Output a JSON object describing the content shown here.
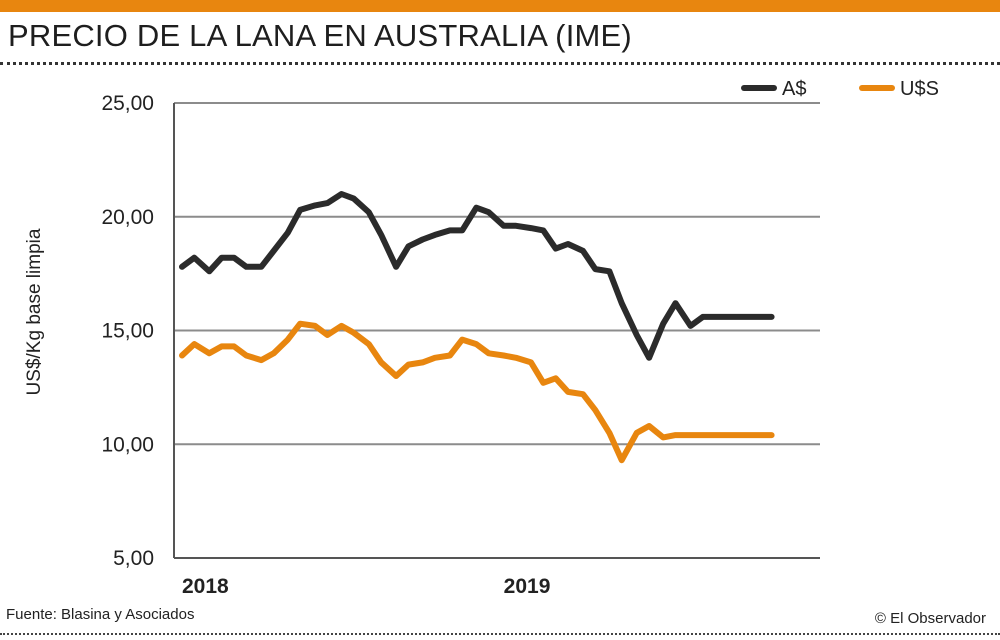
{
  "header": {
    "title": "PRECIO DE LA LANA EN AUSTRALIA (IME)"
  },
  "footer": {
    "source": "Fuente: Blasina y Asociados",
    "credit": "© El Observador"
  },
  "colors": {
    "accent": "#e8860f",
    "series_aud": "#2b2b2b",
    "series_usd": "#e8860f",
    "grid": "#8c8c8c"
  },
  "chart_data": {
    "type": "line",
    "title": "PRECIO DE LA LANA EN AUSTRALIA (IME)",
    "ylabel": "US$/Kg base limpia",
    "xlabel": "",
    "ylim": [
      5,
      25
    ],
    "xlim": [
      "2018-01-01",
      "2019-12-01"
    ],
    "yticks": [
      5,
      10,
      15,
      20,
      25
    ],
    "ytick_labels": [
      "5,00",
      "10,00",
      "15,00",
      "20,00",
      "25,00"
    ],
    "xticks": [
      "2018-01-01",
      "2019-01-01"
    ],
    "xtick_labels": [
      "2018",
      "2019"
    ],
    "grid": "horizontal",
    "legend_position": "top-right",
    "series": [
      {
        "name": "A$",
        "color": "#2b2b2b",
        "x": [
          "2018-01-01",
          "2018-01-15",
          "2018-02-01",
          "2018-02-15",
          "2018-03-01",
          "2018-03-15",
          "2018-04-01",
          "2018-04-15",
          "2018-05-01",
          "2018-05-15",
          "2018-06-01",
          "2018-06-15",
          "2018-07-01",
          "2018-07-15",
          "2018-08-01",
          "2018-08-15",
          "2018-09-01",
          "2018-09-15",
          "2018-10-01",
          "2018-10-15",
          "2018-11-01",
          "2018-11-15",
          "2018-12-01",
          "2018-12-15",
          "2019-01-01",
          "2019-01-15",
          "2019-02-01",
          "2019-02-15",
          "2019-03-01",
          "2019-03-15",
          "2019-04-01",
          "2019-04-15",
          "2019-05-01",
          "2019-05-15",
          "2019-06-01",
          "2019-06-15",
          "2019-07-01",
          "2019-07-15",
          "2019-08-01",
          "2019-08-15",
          "2019-09-01",
          "2019-09-15",
          "2019-10-01",
          "2019-10-15",
          "2019-11-01"
        ],
        "values": [
          17.8,
          18.2,
          17.6,
          18.2,
          18.2,
          17.8,
          17.8,
          18.5,
          19.3,
          20.3,
          20.5,
          20.6,
          21.0,
          20.8,
          20.2,
          19.2,
          17.8,
          18.7,
          19.0,
          19.2,
          19.4,
          19.4,
          20.4,
          20.2,
          19.6,
          19.6,
          19.5,
          19.4,
          18.6,
          18.8,
          18.5,
          17.7,
          17.6,
          16.2,
          14.8,
          13.8,
          15.3,
          16.2,
          15.2,
          15.6,
          15.6,
          15.6,
          15.6,
          15.6,
          15.6
        ],
        "values_note": ""
      },
      {
        "name": "U$S",
        "color": "#e8860f",
        "x": [
          "2018-01-01",
          "2018-01-15",
          "2018-02-01",
          "2018-02-15",
          "2018-03-01",
          "2018-03-15",
          "2018-04-01",
          "2018-04-15",
          "2018-05-01",
          "2018-05-15",
          "2018-06-01",
          "2018-06-15",
          "2018-07-01",
          "2018-07-15",
          "2018-08-01",
          "2018-08-15",
          "2018-09-01",
          "2018-09-15",
          "2018-10-01",
          "2018-10-15",
          "2018-11-01",
          "2018-11-15",
          "2018-12-01",
          "2018-12-15",
          "2019-01-01",
          "2019-01-15",
          "2019-02-01",
          "2019-02-15",
          "2019-03-01",
          "2019-03-15",
          "2019-04-01",
          "2019-04-15",
          "2019-05-01",
          "2019-05-15",
          "2019-06-01",
          "2019-06-15",
          "2019-07-01",
          "2019-07-15",
          "2019-08-01",
          "2019-08-15",
          "2019-09-01",
          "2019-09-15",
          "2019-10-01",
          "2019-10-15",
          "2019-11-01"
        ],
        "values": [
          13.9,
          14.4,
          14.0,
          14.3,
          14.3,
          13.9,
          13.7,
          14.0,
          14.6,
          15.3,
          15.2,
          14.8,
          15.2,
          14.9,
          14.4,
          13.6,
          13.0,
          13.5,
          13.6,
          13.8,
          13.9,
          14.6,
          14.4,
          14.0,
          13.9,
          13.8,
          13.6,
          12.7,
          12.9,
          12.3,
          12.2,
          11.5,
          10.5,
          9.3,
          10.5,
          10.8,
          10.3,
          10.4,
          10.4,
          10.4,
          10.4,
          10.4,
          10.4,
          10.4,
          10.4
        ]
      }
    ]
  }
}
